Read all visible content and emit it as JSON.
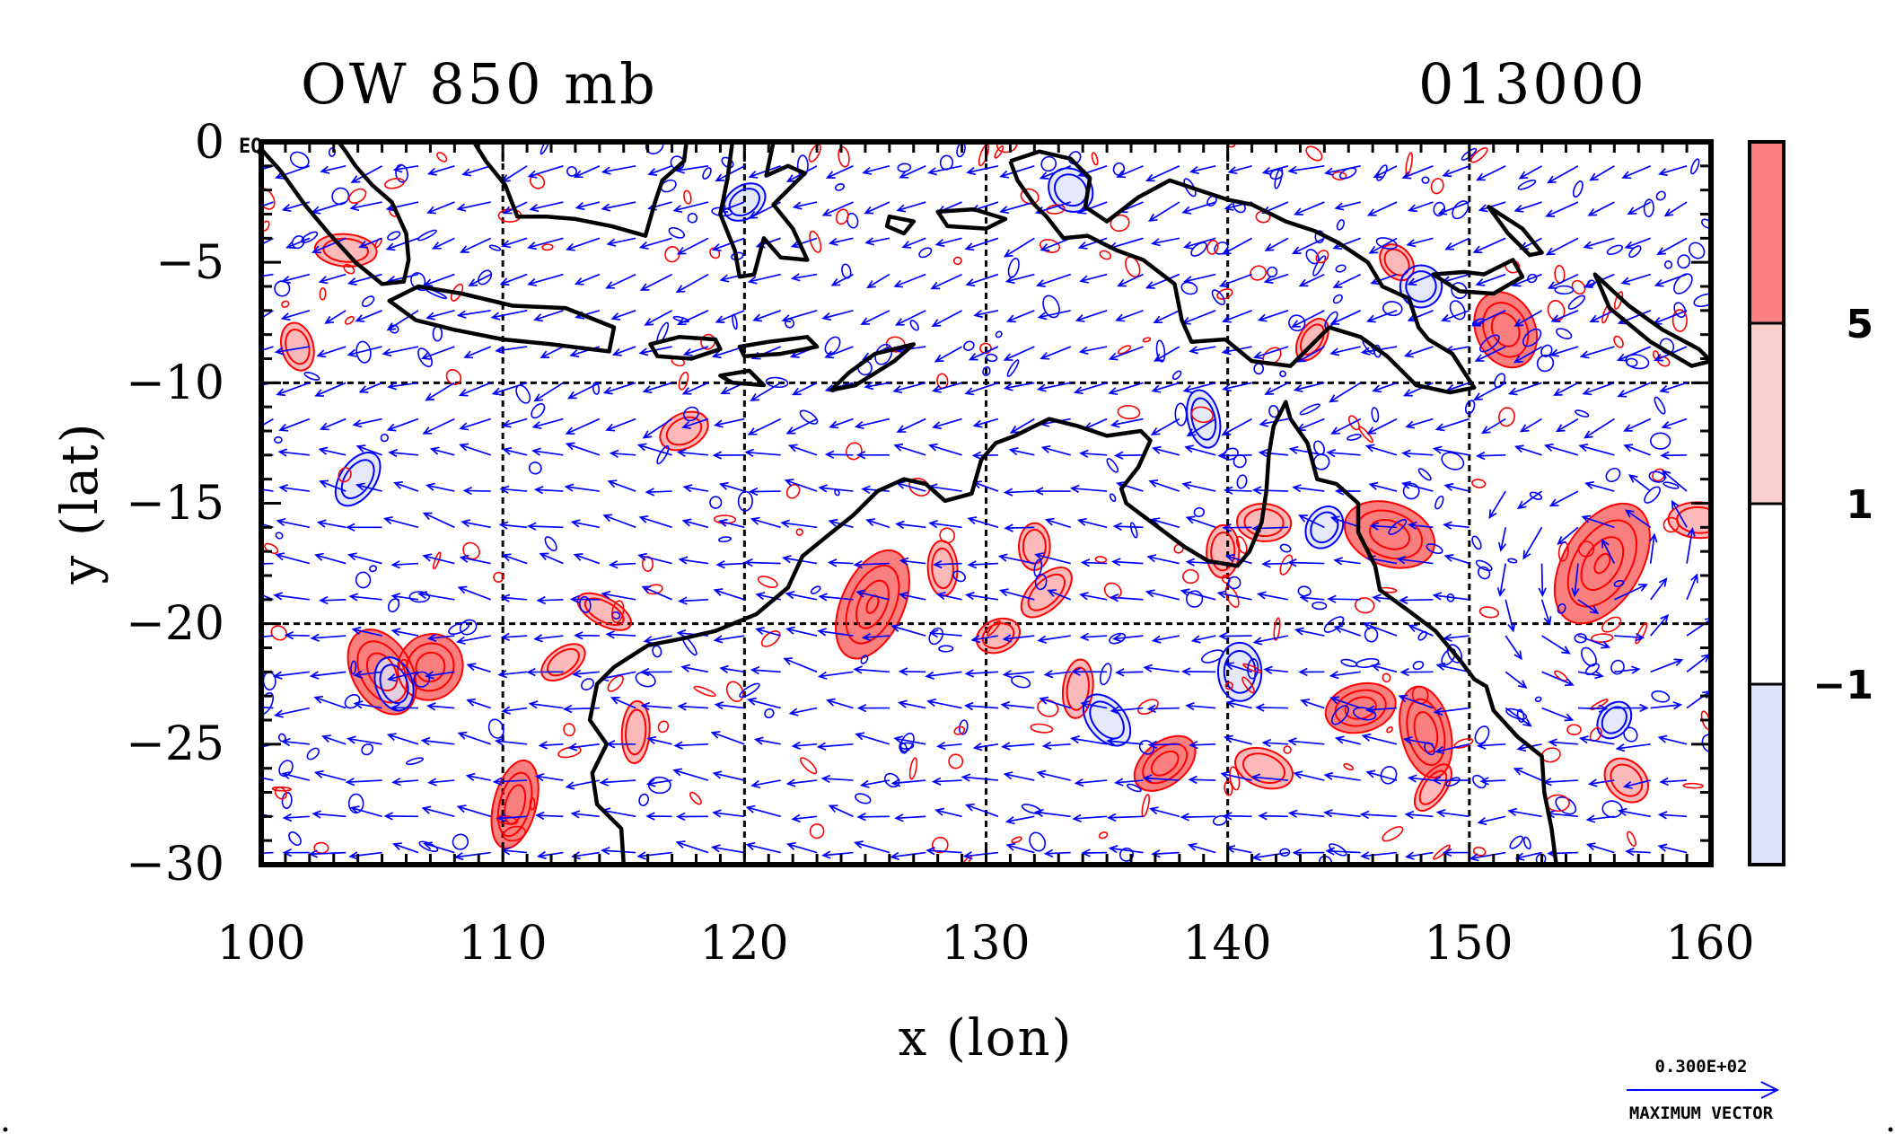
{
  "title_left": "OW 850 mb",
  "title_right": "013000",
  "corner_label": "EQ",
  "xlabel": "x (lon)",
  "ylabel": "y (lat)",
  "x_ticks": [
    "100",
    "110",
    "120",
    "130",
    "140",
    "150",
    "160"
  ],
  "y_ticks": [
    "0",
    "−5",
    "−10",
    "−15",
    "−20",
    "−25",
    "−30"
  ],
  "colorbar": {
    "labels": [
      "5",
      "1",
      "−1"
    ],
    "colors": [
      "#fa7f7f",
      "#fccfcf",
      "#ffffff",
      "#dde2f8"
    ]
  },
  "max_vector": {
    "value": "0.300E+02",
    "label": "MAXIMUM VECTOR"
  },
  "colors": {
    "positive_contour": "#ff0000",
    "negative_contour": "#0000ff",
    "vector": "#0000ff",
    "coastline": "#000000",
    "positive_fill": "#fa7f7f",
    "negative_fill": "#dde2f8"
  },
  "chart_data": {
    "type": "contour-vector-map",
    "xlim": [
      100,
      160
    ],
    "ylim": [
      -30,
      0
    ],
    "grid": true,
    "x_gridlines": [
      110,
      120,
      130,
      140,
      150
    ],
    "y_gridlines": [
      -10,
      -20
    ],
    "contour_levels": [
      -1,
      1,
      5
    ],
    "features": [
      {
        "kind": "positive_ow",
        "lon": 125.3,
        "lat": -19.2,
        "strength": 3
      },
      {
        "kind": "positive_ow",
        "lon": 155.5,
        "lat": -17.5,
        "strength": 3
      },
      {
        "kind": "positive_ow",
        "lon": 107.0,
        "lat": -21.8,
        "strength": 2
      },
      {
        "kind": "positive_ow",
        "lon": 105.0,
        "lat": -22.0,
        "strength": 2
      },
      {
        "kind": "positive_ow",
        "lon": 110.5,
        "lat": -27.5,
        "strength": 2
      },
      {
        "kind": "positive_ow",
        "lon": 137.4,
        "lat": -25.8,
        "strength": 2
      },
      {
        "kind": "positive_ow",
        "lon": 146.7,
        "lat": -16.3,
        "strength": 2
      },
      {
        "kind": "positive_ow",
        "lon": 151.5,
        "lat": -7.8,
        "strength": 2
      },
      {
        "kind": "positive_ow",
        "lon": 145.5,
        "lat": -23.5,
        "strength": 2
      },
      {
        "kind": "positive_ow",
        "lon": 148.2,
        "lat": -24.5,
        "strength": 2
      },
      {
        "kind": "positive_ow",
        "lon": 114.2,
        "lat": -19.5,
        "strength": 1
      },
      {
        "kind": "positive_ow",
        "lon": 132.0,
        "lat": -16.8,
        "strength": 1
      },
      {
        "kind": "positive_ow",
        "lon": 132.5,
        "lat": -18.7,
        "strength": 1
      },
      {
        "kind": "positive_ow",
        "lon": 130.5,
        "lat": -20.5,
        "strength": 1
      },
      {
        "kind": "positive_ow",
        "lon": 133.8,
        "lat": -22.7,
        "strength": 1
      },
      {
        "kind": "positive_ow",
        "lon": 141.5,
        "lat": -26.0,
        "strength": 1
      },
      {
        "kind": "positive_ow",
        "lon": 148.5,
        "lat": -26.8,
        "strength": 1
      },
      {
        "kind": "positive_ow",
        "lon": 156.5,
        "lat": -26.5,
        "strength": 1
      },
      {
        "kind": "positive_ow",
        "lon": 101.5,
        "lat": -8.5,
        "strength": 1
      },
      {
        "kind": "positive_ow",
        "lon": 103.5,
        "lat": -4.5,
        "strength": 1
      },
      {
        "kind": "positive_ow",
        "lon": 143.5,
        "lat": -8.2,
        "strength": 1
      },
      {
        "kind": "positive_ow",
        "lon": 147.0,
        "lat": -5.0,
        "strength": 1
      },
      {
        "kind": "positive_ow",
        "lon": 112.5,
        "lat": -21.6,
        "strength": 1
      },
      {
        "kind": "positive_ow",
        "lon": 117.5,
        "lat": -12.0,
        "strength": 1
      },
      {
        "kind": "positive_ow",
        "lon": 141.5,
        "lat": -15.8,
        "strength": 1
      },
      {
        "kind": "positive_ow",
        "lon": 139.8,
        "lat": -17.0,
        "strength": 1
      },
      {
        "kind": "positive_ow",
        "lon": 128.2,
        "lat": -17.7,
        "strength": 1
      },
      {
        "kind": "positive_ow",
        "lon": 115.5,
        "lat": -24.5,
        "strength": 1
      },
      {
        "kind": "positive_ow",
        "lon": 159.5,
        "lat": -15.7,
        "strength": 1
      },
      {
        "kind": "negative_ow",
        "lon": 105.5,
        "lat": -22.5,
        "strength": 1
      },
      {
        "kind": "negative_ow",
        "lon": 135.0,
        "lat": -24.0,
        "strength": 1
      },
      {
        "kind": "negative_ow",
        "lon": 140.5,
        "lat": -22.0,
        "strength": 1
      },
      {
        "kind": "negative_ow",
        "lon": 144.0,
        "lat": -16.0,
        "strength": 1
      },
      {
        "kind": "negative_ow",
        "lon": 104.0,
        "lat": -14.0,
        "strength": 1
      },
      {
        "kind": "negative_ow",
        "lon": 148.0,
        "lat": -6.0,
        "strength": 1
      },
      {
        "kind": "negative_ow",
        "lon": 120.0,
        "lat": -2.5,
        "strength": 1
      },
      {
        "kind": "negative_ow",
        "lon": 133.5,
        "lat": -2.0,
        "strength": 1
      },
      {
        "kind": "negative_ow",
        "lon": 139.0,
        "lat": -11.5,
        "strength": 1
      },
      {
        "kind": "negative_ow",
        "lon": 156.0,
        "lat": -24.0,
        "strength": 1
      }
    ],
    "coastlines": [
      {
        "name": "australia",
        "closed": false,
        "points": [
          [
            115.0,
            -30
          ],
          [
            114.9,
            -28.5
          ],
          [
            113.9,
            -27.5
          ],
          [
            113.7,
            -26.2
          ],
          [
            114.3,
            -25.0
          ],
          [
            113.6,
            -24.0
          ],
          [
            113.9,
            -22.5
          ],
          [
            114.6,
            -21.8
          ],
          [
            116.0,
            -20.9
          ],
          [
            117.5,
            -20.6
          ],
          [
            118.8,
            -20.3
          ],
          [
            120.5,
            -19.6
          ],
          [
            121.8,
            -18.5
          ],
          [
            122.4,
            -17.2
          ],
          [
            123.5,
            -16.3
          ],
          [
            124.5,
            -15.5
          ],
          [
            125.5,
            -14.5
          ],
          [
            126.6,
            -14.0
          ],
          [
            127.5,
            -14.2
          ],
          [
            128.3,
            -14.9
          ],
          [
            129.4,
            -14.6
          ],
          [
            129.8,
            -13.2
          ],
          [
            130.4,
            -12.5
          ],
          [
            131.2,
            -12.2
          ],
          [
            132.6,
            -11.5
          ],
          [
            133.8,
            -11.8
          ],
          [
            135.0,
            -12.2
          ],
          [
            136.4,
            -12.0
          ],
          [
            136.8,
            -12.4
          ],
          [
            136.3,
            -13.5
          ],
          [
            135.6,
            -14.4
          ],
          [
            135.8,
            -15.0
          ],
          [
            137.0,
            -15.9
          ],
          [
            138.2,
            -16.8
          ],
          [
            139.2,
            -17.4
          ],
          [
            140.4,
            -17.6
          ],
          [
            140.9,
            -17.0
          ],
          [
            141.4,
            -15.8
          ],
          [
            141.6,
            -14.5
          ],
          [
            141.7,
            -13.0
          ],
          [
            141.9,
            -11.8
          ],
          [
            142.4,
            -10.8
          ],
          [
            142.6,
            -11.5
          ],
          [
            143.3,
            -12.5
          ],
          [
            143.7,
            -14.0
          ],
          [
            144.5,
            -14.2
          ],
          [
            145.4,
            -15.0
          ],
          [
            145.4,
            -16.2
          ],
          [
            146.1,
            -17.6
          ],
          [
            146.3,
            -18.6
          ],
          [
            147.4,
            -19.4
          ],
          [
            148.6,
            -20.3
          ],
          [
            149.6,
            -21.5
          ],
          [
            150.2,
            -22.3
          ],
          [
            150.7,
            -22.6
          ],
          [
            151.0,
            -23.6
          ],
          [
            152.0,
            -24.7
          ],
          [
            153.0,
            -25.5
          ],
          [
            153.1,
            -27.0
          ],
          [
            153.4,
            -28.5
          ],
          [
            153.6,
            -30.0
          ]
        ]
      },
      {
        "name": "sumatra",
        "closed": false,
        "points": [
          [
            100.0,
            -0.3
          ],
          [
            100.8,
            -1.2
          ],
          [
            101.8,
            -2.6
          ],
          [
            102.8,
            -3.8
          ],
          [
            103.9,
            -5.0
          ],
          [
            105.0,
            -5.9
          ],
          [
            105.9,
            -5.8
          ],
          [
            106.1,
            -4.9
          ],
          [
            106.0,
            -3.8
          ],
          [
            105.4,
            -2.5
          ],
          [
            104.6,
            -1.8
          ],
          [
            103.9,
            -1.0
          ],
          [
            103.5,
            -0.4
          ],
          [
            103.2,
            0
          ]
        ]
      },
      {
        "name": "java",
        "closed": true,
        "points": [
          [
            105.3,
            -6.6
          ],
          [
            106.5,
            -6.0
          ],
          [
            108.3,
            -6.3
          ],
          [
            110.4,
            -6.8
          ],
          [
            112.6,
            -6.9
          ],
          [
            114.6,
            -7.7
          ],
          [
            114.4,
            -8.7
          ],
          [
            112.0,
            -8.4
          ],
          [
            110.0,
            -8.2
          ],
          [
            108.0,
            -7.8
          ],
          [
            106.4,
            -7.4
          ]
        ]
      },
      {
        "name": "borneo",
        "closed": false,
        "points": [
          [
            108.8,
            0
          ],
          [
            109.3,
            -0.8
          ],
          [
            110.1,
            -1.8
          ],
          [
            110.6,
            -3.1
          ],
          [
            111.8,
            -3.1
          ],
          [
            113.0,
            -3.2
          ],
          [
            114.5,
            -3.5
          ],
          [
            115.9,
            -3.9
          ],
          [
            116.3,
            -2.5
          ],
          [
            116.6,
            -1.6
          ],
          [
            117.5,
            -0.8
          ],
          [
            117.6,
            0
          ]
        ]
      },
      {
        "name": "lombok_sumbawa",
        "closed": true,
        "points": [
          [
            116.1,
            -8.4
          ],
          [
            117.3,
            -8.1
          ],
          [
            118.8,
            -8.2
          ],
          [
            119.0,
            -8.6
          ],
          [
            117.8,
            -9.0
          ],
          [
            116.4,
            -8.9
          ]
        ]
      },
      {
        "name": "flores",
        "closed": true,
        "points": [
          [
            119.8,
            -8.5
          ],
          [
            121.0,
            -8.3
          ],
          [
            122.6,
            -8.1
          ],
          [
            123.0,
            -8.5
          ],
          [
            121.5,
            -8.8
          ],
          [
            120.0,
            -8.9
          ]
        ]
      },
      {
        "name": "timor",
        "closed": true,
        "points": [
          [
            123.6,
            -10.3
          ],
          [
            124.3,
            -9.6
          ],
          [
            125.4,
            -8.8
          ],
          [
            127.0,
            -8.4
          ],
          [
            126.2,
            -9.1
          ],
          [
            124.6,
            -10.1
          ]
        ]
      },
      {
        "name": "sumba",
        "closed": true,
        "points": [
          [
            119.0,
            -9.7
          ],
          [
            120.2,
            -9.5
          ],
          [
            120.8,
            -10.1
          ],
          [
            119.5,
            -10.0
          ]
        ]
      },
      {
        "name": "sulawesi",
        "closed": false,
        "points": [
          [
            119.5,
            0
          ],
          [
            119.3,
            -1.5
          ],
          [
            119.0,
            -3.0
          ],
          [
            119.6,
            -4.5
          ],
          [
            119.8,
            -5.6
          ],
          [
            120.4,
            -5.5
          ],
          [
            120.8,
            -4.0
          ],
          [
            121.5,
            -4.8
          ],
          [
            122.6,
            -4.9
          ],
          [
            122.0,
            -3.6
          ],
          [
            121.2,
            -2.6
          ],
          [
            122.5,
            -1.3
          ],
          [
            121.8,
            -1.0
          ],
          [
            120.9,
            -1.4
          ],
          [
            121.2,
            0
          ]
        ]
      },
      {
        "name": "seram",
        "closed": true,
        "points": [
          [
            128.0,
            -2.9
          ],
          [
            129.5,
            -2.8
          ],
          [
            130.8,
            -3.2
          ],
          [
            130.0,
            -3.6
          ],
          [
            128.4,
            -3.5
          ]
        ]
      },
      {
        "name": "buru",
        "closed": true,
        "points": [
          [
            126.0,
            -3.1
          ],
          [
            127.0,
            -3.3
          ],
          [
            126.6,
            -3.8
          ],
          [
            125.9,
            -3.5
          ]
        ]
      },
      {
        "name": "new_guinea",
        "closed": false,
        "points": [
          [
            131.0,
            -0.8
          ],
          [
            132.2,
            -0.4
          ],
          [
            133.5,
            -0.7
          ],
          [
            134.3,
            -1.5
          ],
          [
            134.1,
            -2.7
          ],
          [
            135.0,
            -3.3
          ],
          [
            136.3,
            -2.3
          ],
          [
            137.6,
            -1.6
          ],
          [
            138.8,
            -2.0
          ],
          [
            140.0,
            -2.4
          ],
          [
            141.0,
            -2.6
          ],
          [
            142.4,
            -3.3
          ],
          [
            143.6,
            -3.7
          ],
          [
            144.6,
            -4.2
          ],
          [
            145.8,
            -5.0
          ],
          [
            146.4,
            -6.0
          ],
          [
            147.5,
            -6.5
          ],
          [
            147.9,
            -7.7
          ],
          [
            148.3,
            -8.2
          ],
          [
            149.3,
            -8.8
          ],
          [
            150.2,
            -10.2
          ],
          [
            149.2,
            -10.4
          ],
          [
            147.8,
            -10.1
          ],
          [
            146.6,
            -8.9
          ],
          [
            145.5,
            -8.1
          ],
          [
            144.2,
            -7.7
          ],
          [
            143.5,
            -8.4
          ],
          [
            142.6,
            -9.3
          ],
          [
            141.0,
            -9.1
          ],
          [
            139.9,
            -8.2
          ],
          [
            138.5,
            -8.3
          ],
          [
            138.1,
            -7.4
          ],
          [
            137.8,
            -5.9
          ],
          [
            136.5,
            -4.9
          ],
          [
            135.4,
            -4.5
          ],
          [
            134.2,
            -3.9
          ],
          [
            133.2,
            -4.0
          ],
          [
            132.5,
            -3.1
          ],
          [
            132.0,
            -2.6
          ],
          [
            131.3,
            -1.6
          ],
          [
            131.0,
            -0.8
          ]
        ]
      },
      {
        "name": "new_britain",
        "closed": true,
        "points": [
          [
            148.5,
            -5.5
          ],
          [
            149.8,
            -5.4
          ],
          [
            150.6,
            -5.5
          ],
          [
            151.8,
            -4.9
          ],
          [
            152.2,
            -5.6
          ],
          [
            151.0,
            -6.3
          ],
          [
            149.6,
            -6.2
          ]
        ]
      },
      {
        "name": "new_ireland",
        "closed": true,
        "points": [
          [
            150.8,
            -2.7
          ],
          [
            152.2,
            -3.6
          ],
          [
            153.0,
            -4.6
          ],
          [
            152.5,
            -4.7
          ],
          [
            151.6,
            -3.8
          ]
        ]
      },
      {
        "name": "solomons",
        "closed": true,
        "points": [
          [
            155.2,
            -5.5
          ],
          [
            156.6,
            -6.8
          ],
          [
            158.0,
            -7.8
          ],
          [
            159.5,
            -8.6
          ],
          [
            160.0,
            -9.1
          ],
          [
            159.2,
            -9.3
          ],
          [
            157.5,
            -8.3
          ],
          [
            155.8,
            -6.9
          ]
        ]
      }
    ]
  }
}
